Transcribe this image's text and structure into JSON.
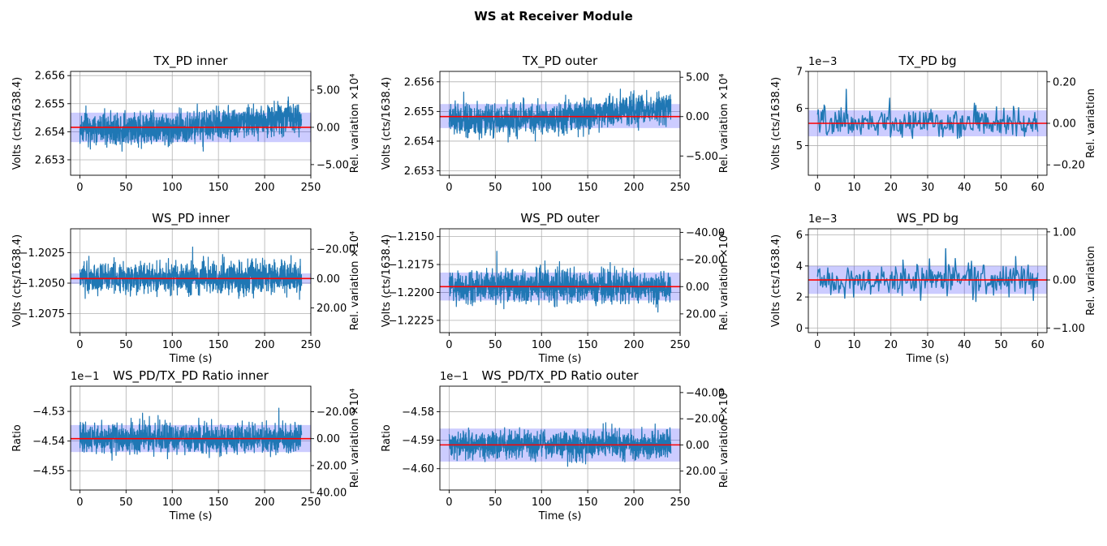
{
  "figure": {
    "suptitle": "WS at Receiver Module"
  },
  "chart_data": [
    {
      "type": "line",
      "title": "TX_PD inner",
      "xlabel": "",
      "ylabel": "Volts (cts/1638.4)",
      "y2label": "Rel. variation ×10⁴",
      "xlim": [
        -10,
        250
      ],
      "xticks": [
        0,
        50,
        100,
        150,
        200,
        250
      ],
      "ylim": [
        2.65245,
        2.65615
      ],
      "yticks": [
        2.653,
        2.654,
        2.655,
        2.656
      ],
      "yfmt": "%.3f",
      "yoffset": "",
      "y2ticks": [
        {
          "v": 2.655485,
          "label": "5.00"
        },
        {
          "v": 2.654157,
          "label": "0.00"
        },
        {
          "v": 2.652829,
          "label": "-5.00"
        }
      ],
      "mean": 2.654157,
      "band": [
        2.65363,
        2.65468
      ],
      "series_style": "dense",
      "series": {
        "x_range": [
          0,
          240
        ],
        "n": 1200,
        "base": 2.6541,
        "trend_end": 2.6546,
        "trend_start_x": 110,
        "noise": 0.00042,
        "spikes": 0.0009
      },
      "grid": true
    },
    {
      "type": "line",
      "title": "TX_PD outer",
      "xlabel": "",
      "ylabel": "Volts (cts/1638.4)",
      "y2label": "Rel. variation ×10⁴",
      "xlim": [
        -10,
        250
      ],
      "xticks": [
        0,
        50,
        100,
        150,
        200,
        250
      ],
      "ylim": [
        2.65285,
        2.65635
      ],
      "yticks": [
        2.653,
        2.654,
        2.655,
        2.656
      ],
      "yfmt": "%.3f",
      "yoffset": "",
      "y2ticks": [
        {
          "v": 2.656153,
          "label": "5.00"
        },
        {
          "v": 2.654826,
          "label": "0.00"
        },
        {
          "v": 2.653499,
          "label": "-5.00"
        }
      ],
      "mean": 2.654826,
      "band": [
        2.65444,
        2.65525
      ],
      "series_style": "dense",
      "series": {
        "x_range": [
          0,
          240
        ],
        "n": 1200,
        "base": 2.6547,
        "trend_end": 2.6551,
        "trend_start_x": 60,
        "noise": 0.00038,
        "spikes": 0.0008
      },
      "grid": true
    },
    {
      "type": "line",
      "title": "TX_PD bg",
      "xlabel": "",
      "ylabel": "Volts (cts/1638.4)",
      "y2label": "Rel. variation",
      "xlim": [
        -2.5,
        62.5
      ],
      "xticks": [
        0,
        10,
        20,
        30,
        40,
        50,
        60
      ],
      "ylim": [
        4.2,
        7.0
      ],
      "yticks": [
        5,
        6,
        7
      ],
      "yfmt": "%d",
      "yoffset": "1e−3",
      "y2ticks": [
        {
          "v": 6.72,
          "label": "0.20"
        },
        {
          "v": 5.6,
          "label": "0.00"
        },
        {
          "v": 4.48,
          "label": "-0.20"
        }
      ],
      "mean": 5.6,
      "band": [
        5.25,
        5.95
      ],
      "series_style": "sparse",
      "series": {
        "x_range": [
          0,
          60
        ],
        "n": 300,
        "base": 5.6,
        "trend_end": 5.6,
        "trend_start_x": 0,
        "noise": 0.28,
        "spikes": 1.2
      },
      "grid": true
    },
    {
      "type": "line",
      "title": "WS_PD inner",
      "xlabel": "Time (s)",
      "ylabel": "Volts (cts/1638.4)",
      "y2label": "Rel. variation ×10⁴",
      "xlim": [
        -10,
        250
      ],
      "xticks": [
        0,
        50,
        100,
        150,
        200,
        250
      ],
      "ylim": [
        -1.20905,
        -1.20055
      ],
      "yticks": [
        -1.2025,
        -1.205,
        -1.2075
      ],
      "yfmt": "%.4f",
      "yoffset": "",
      "y2ticks": [
        {
          "v": -1.20222,
          "label": "-20.00"
        },
        {
          "v": -1.20462,
          "label": "0.00"
        },
        {
          "v": -1.20703,
          "label": "20.00"
        }
      ],
      "mean": -1.20462,
      "band": [
        -1.20505,
        -1.2042
      ],
      "series_style": "dense",
      "series": {
        "x_range": [
          0,
          240
        ],
        "n": 1200,
        "base": -1.20462,
        "trend_end": -1.20462,
        "trend_start_x": 0,
        "noise": 0.00095,
        "spikes": 0.0035
      },
      "grid": true
    },
    {
      "type": "line",
      "title": "WS_PD outer",
      "xlabel": "Time (s)",
      "ylabel": "Volts (cts/1638.4)",
      "y2label": "Rel. variation ×10⁴",
      "xlim": [
        -10,
        250
      ],
      "xticks": [
        0,
        50,
        100,
        150,
        200,
        250
      ],
      "ylim": [
        -1.2236,
        -1.2143
      ],
      "yticks": [
        -1.215,
        -1.2175,
        -1.22,
        -1.2225
      ],
      "yfmt": "%.4f",
      "yoffset": "",
      "y2ticks": [
        {
          "v": -1.21462,
          "label": "-40.00"
        },
        {
          "v": -1.21705,
          "label": "-20.00"
        },
        {
          "v": -1.21948,
          "label": "0.00"
        },
        {
          "v": -1.22192,
          "label": "20.00"
        }
      ],
      "mean": -1.21948,
      "band": [
        -1.22072,
        -1.21822
      ],
      "series_style": "dense",
      "series": {
        "x_range": [
          0,
          240
        ],
        "n": 1200,
        "base": -1.21948,
        "trend_end": -1.21948,
        "trend_start_x": 0,
        "noise": 0.00105,
        "spikes": 0.0038
      },
      "grid": true
    },
    {
      "type": "line",
      "title": "WS_PD bg",
      "xlabel": "Time (s)",
      "ylabel": "Volts (cts/1638.4)",
      "y2label": "Rel. variation",
      "xlim": [
        -2.5,
        62.5
      ],
      "xticks": [
        0,
        10,
        20,
        30,
        40,
        50,
        60
      ],
      "ylim": [
        -0.3,
        6.4
      ],
      "yticks": [
        0,
        2,
        4,
        6
      ],
      "yfmt": "%d",
      "yoffset": "1e−3",
      "y2ticks": [
        {
          "v": 6.2,
          "label": "1.00"
        },
        {
          "v": 3.1,
          "label": "0.00"
        },
        {
          "v": 0.0,
          "label": "-1.00"
        }
      ],
      "mean": 3.1,
      "band": [
        2.2,
        4.0
      ],
      "series_style": "sparse",
      "series": {
        "x_range": [
          0,
          60
        ],
        "n": 300,
        "base": 3.1,
        "trend_end": 3.1,
        "trend_start_x": 0,
        "noise": 0.75,
        "spikes": 2.8
      },
      "grid": true
    },
    {
      "type": "line",
      "title": "WS_PD/TX_PD Ratio inner",
      "xlabel": "Time (s)",
      "ylabel": "Ratio",
      "y2label": "Rel. variation ×10⁴",
      "xlim": [
        -10,
        250
      ],
      "xticks": [
        0,
        50,
        100,
        150,
        200,
        250
      ],
      "ylim": [
        -4.5565,
        -4.5215
      ],
      "yticks": [
        -4.53,
        -4.54,
        -4.55
      ],
      "yfmt": "%.2f",
      "yoffset": "1e−1",
      "y2ticks": [
        {
          "v": -4.53012,
          "label": "-20.00"
        },
        {
          "v": -4.53919,
          "label": "0.00"
        },
        {
          "v": -4.54827,
          "label": "20.00"
        },
        {
          "v": -4.55735,
          "label": "40.00"
        }
      ],
      "mean": -4.53919,
      "band": [
        -4.5437,
        -4.5346
      ],
      "series_style": "dense",
      "series": {
        "x_range": [
          0,
          240
        ],
        "n": 1200,
        "base": -4.53919,
        "trend_end": -4.53919,
        "trend_start_x": 0,
        "noise": 0.0035,
        "spikes": 0.012
      },
      "grid": true
    },
    {
      "type": "line",
      "title": "WS_PD/TX_PD Ratio outer",
      "xlabel": "Time (s)",
      "ylabel": "Ratio",
      "y2label": "Rel. variation ×10⁴",
      "xlim": [
        -10,
        250
      ],
      "xticks": [
        0,
        50,
        100,
        150,
        200,
        250
      ],
      "ylim": [
        -4.6075,
        -4.571
      ],
      "yticks": [
        -4.58,
        -4.59,
        -4.6
      ],
      "yfmt": "%.2f",
      "yoffset": "1e−1",
      "y2ticks": [
        {
          "v": -4.57324,
          "label": "-40.00"
        },
        {
          "v": -4.58244,
          "label": "-20.00"
        },
        {
          "v": -4.59164,
          "label": "0.00"
        },
        {
          "v": -4.60085,
          "label": "20.00"
        }
      ],
      "mean": -4.59164,
      "band": [
        -4.5975,
        -4.5859
      ],
      "series_style": "dense",
      "series": {
        "x_range": [
          0,
          240
        ],
        "n": 1200,
        "base": -4.59164,
        "trend_end": -4.59164,
        "trend_start_x": 0,
        "noise": 0.0034,
        "spikes": 0.012
      },
      "grid": true
    }
  ]
}
